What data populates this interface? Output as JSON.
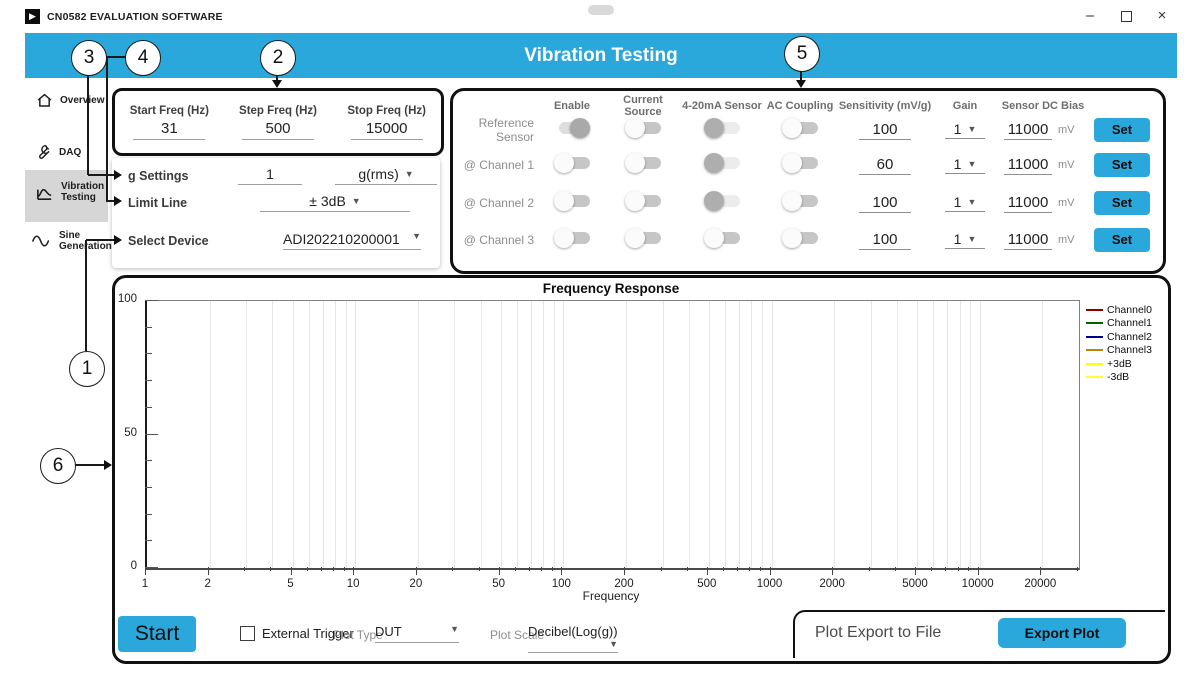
{
  "window": {
    "title": "CN0582 EVALUATION SOFTWARE",
    "controls": {
      "minimize": "–",
      "close": "×"
    },
    "logo_glyph": "▶"
  },
  "header": {
    "title": "Vibration Testing",
    "accent_color": "#2AA7DB"
  },
  "sidebar": {
    "items": [
      {
        "label": "Overview",
        "icon": "home-icon",
        "active": false
      },
      {
        "label": "DAQ",
        "icon": "wrench-icon",
        "active": false
      },
      {
        "label": "Vibration Testing",
        "icon": "vibration-chart-icon",
        "active": true
      },
      {
        "label": "Sine Generation",
        "icon": "sine-wave-icon",
        "active": false
      }
    ]
  },
  "freq_settings": {
    "fields": [
      {
        "label": "Start Freq (Hz)",
        "value": "31"
      },
      {
        "label": "Step Freq (Hz)",
        "value": "500"
      },
      {
        "label": "Stop Freq (Hz)",
        "value": "15000"
      }
    ]
  },
  "general_settings": {
    "g_settings": {
      "label": "g Settings",
      "value": "1",
      "unit": "g(rms)"
    },
    "limit_line": {
      "label": "Limit Line",
      "value": "± 3dB"
    },
    "select_device": {
      "label": "Select Device",
      "value": "ADI202210200001"
    }
  },
  "channels_panel": {
    "columns": {
      "enable": "Enable",
      "current_source": "Current Source",
      "sensor_420": "4-20mA Sensor",
      "ac_coupling": "AC Coupling",
      "sensitivity": "Sensitivity (mV/g)",
      "gain": "Gain",
      "dc_bias": "Sensor DC Bias"
    },
    "rows": [
      {
        "label": "Reference Sensor",
        "enable": true,
        "current_source": false,
        "sensor_420": false,
        "sensor_420_variant": "dark",
        "ac_coupling": false,
        "sensitivity": "100",
        "gain": "1",
        "bias": "11000",
        "bias_unit": "mV",
        "set_label": "Set"
      },
      {
        "label": "@ Channel 1",
        "enable": false,
        "current_source": false,
        "sensor_420": false,
        "sensor_420_variant": "dark",
        "ac_coupling": false,
        "sensitivity": "60",
        "gain": "1",
        "bias": "11000",
        "bias_unit": "mV",
        "set_label": "Set"
      },
      {
        "label": "@ Channel 2",
        "enable": false,
        "current_source": false,
        "sensor_420": false,
        "sensor_420_variant": "dark",
        "ac_coupling": false,
        "sensitivity": "100",
        "gain": "1",
        "bias": "11000",
        "bias_unit": "mV",
        "set_label": "Set"
      },
      {
        "label": "@ Channel 3",
        "enable": false,
        "current_source": false,
        "sensor_420": false,
        "sensor_420_variant": "normal",
        "ac_coupling": false,
        "sensitivity": "100",
        "gain": "1",
        "bias": "11000",
        "bias_unit": "mV",
        "set_label": "Set"
      }
    ]
  },
  "chart_data": {
    "type": "line",
    "title": "Frequency Response",
    "xlabel": "Frequency",
    "ylabel": "",
    "xscale": "log",
    "xlim": [
      1,
      30000
    ],
    "ylim": [
      0,
      100
    ],
    "x_ticks": [
      1,
      2,
      5,
      10,
      20,
      50,
      100,
      200,
      500,
      1000,
      2000,
      5000,
      10000,
      20000
    ],
    "y_ticks": [
      0,
      50,
      100
    ],
    "y_minor_step": 10,
    "grid": "vertical-log-minor",
    "legend_position": "right",
    "series": [
      {
        "name": "Channel0",
        "color": "#8B0000",
        "values": []
      },
      {
        "name": "Channel1",
        "color": "#006400",
        "values": []
      },
      {
        "name": "Channel2",
        "color": "#00008B",
        "values": []
      },
      {
        "name": "Channel3",
        "color": "#B8860B",
        "values": []
      },
      {
        "name": "+3dB",
        "color": "#FFFF00",
        "values": []
      },
      {
        "name": "-3dB",
        "color": "#FFFF33",
        "values": []
      }
    ]
  },
  "bottom_bar": {
    "start_label": "Start",
    "external_trigger": {
      "label": "External Trigger",
      "checked": false
    },
    "plot_type": {
      "label": "Plot Type",
      "value": "DUT"
    },
    "plot_scale": {
      "label": "Plot Scale",
      "value": "Decibel(Log(g))"
    },
    "export": {
      "label": "Plot Export to File",
      "button_label": "Export Plot"
    }
  },
  "callouts": [
    {
      "n": "1"
    },
    {
      "n": "2"
    },
    {
      "n": "3"
    },
    {
      "n": "4"
    },
    {
      "n": "5"
    },
    {
      "n": "6"
    }
  ]
}
